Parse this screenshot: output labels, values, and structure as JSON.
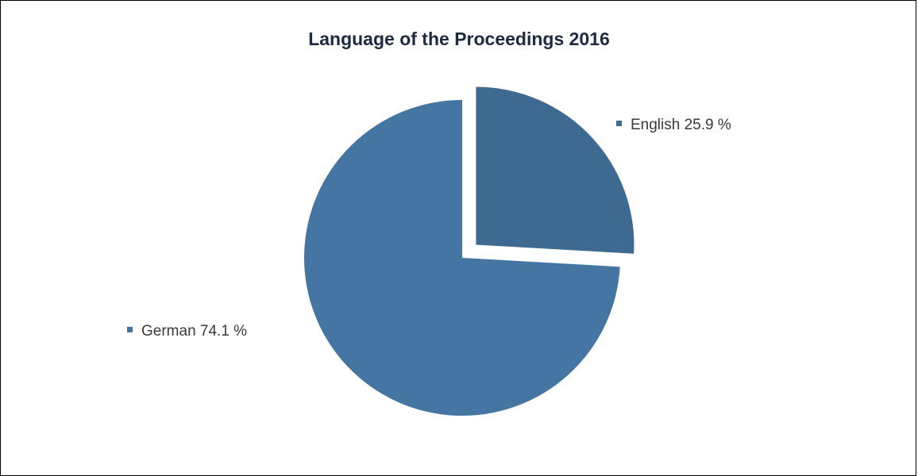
{
  "chart_data": {
    "type": "pie",
    "title": "Language of the Proceedings 2016",
    "slices": [
      {
        "label": "English 25.9 %",
        "name": "English",
        "value": 25.9,
        "color": "#3e6990",
        "exploded": true
      },
      {
        "label": "German 74.1 %",
        "name": "German",
        "value": 74.1,
        "color": "#4575a3",
        "exploded": false
      }
    ],
    "legend": "inline labels beside slices"
  }
}
